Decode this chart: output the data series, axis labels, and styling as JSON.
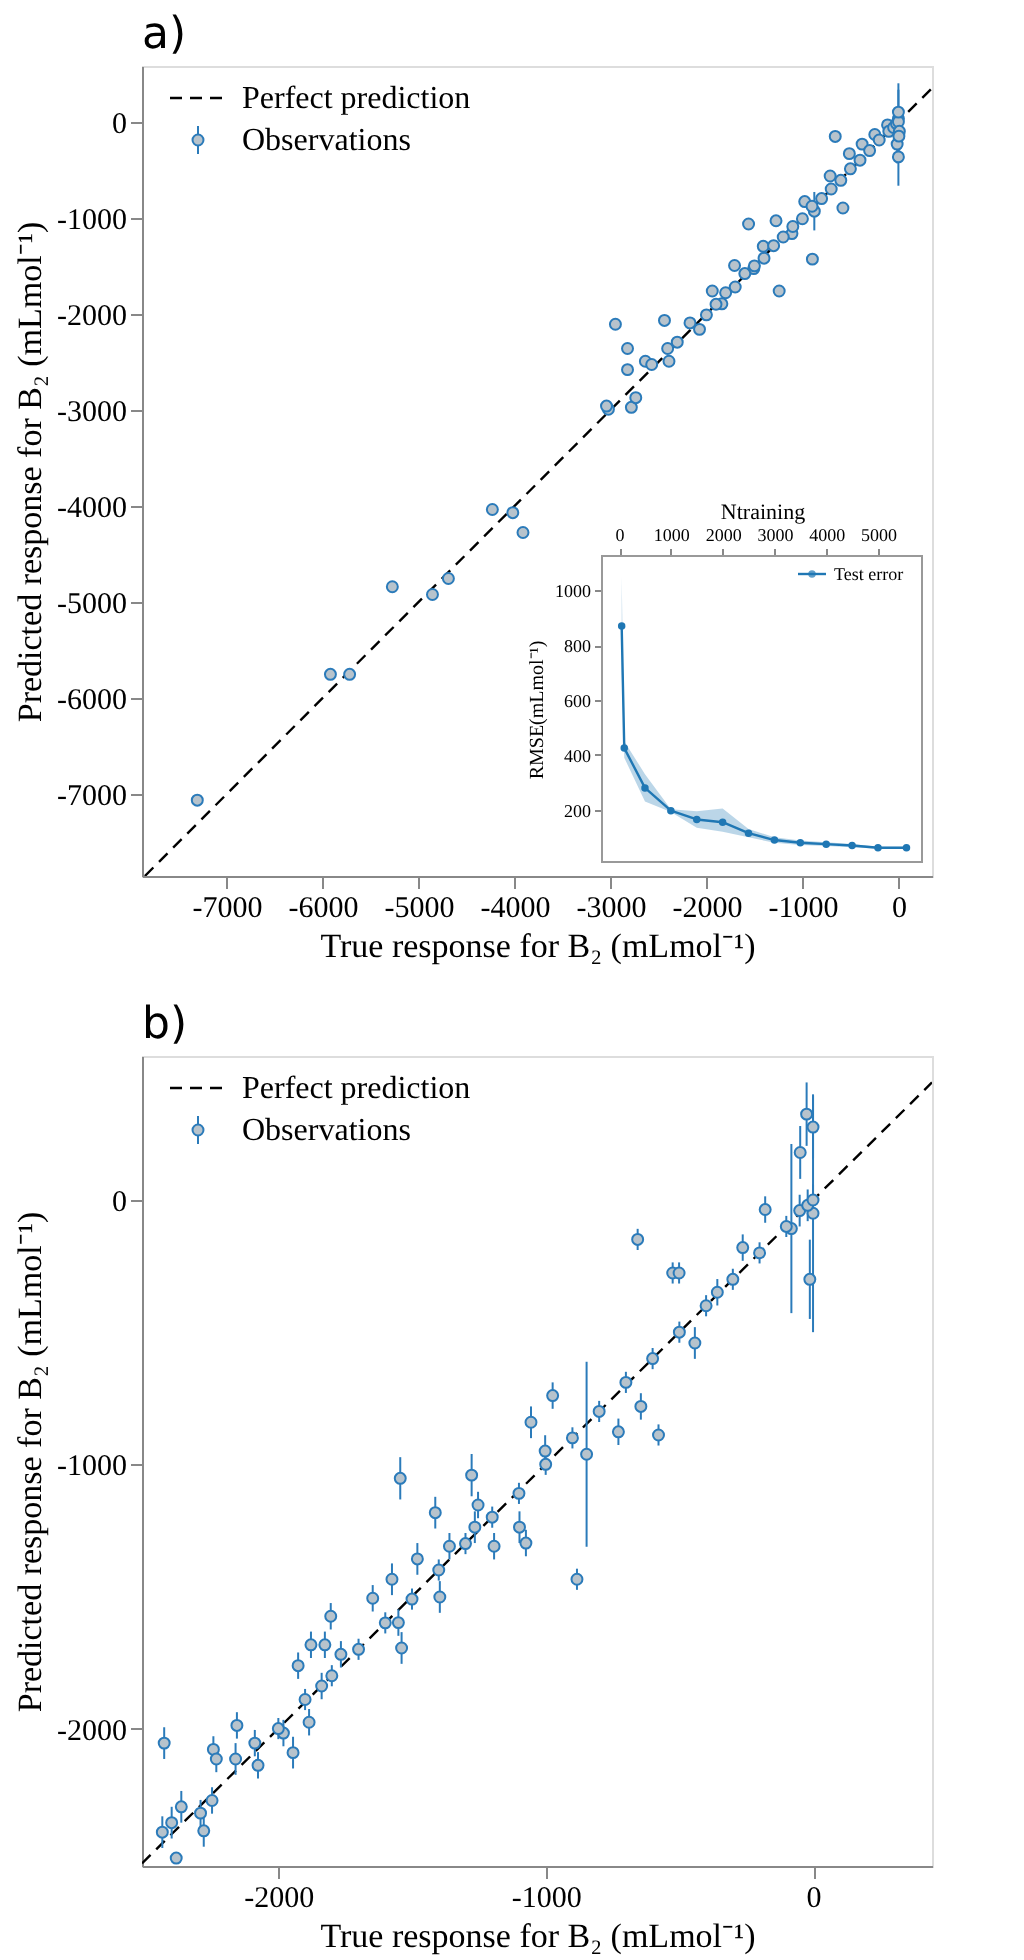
{
  "chart_data": [
    {
      "type": "scatter",
      "annotations": [
        "a)"
      ],
      "xlabel": "True response for B₂ (mLmol⁻¹)",
      "ylabel": "Predicted response for B₂ (mLmol⁻¹)",
      "xlim": [
        -7880,
        350
      ],
      "ylim": [
        -7850,
        580
      ],
      "xticks": [
        -7000,
        -6000,
        -5000,
        -4000,
        -3000,
        -2000,
        -1000,
        0
      ],
      "yticks": [
        -7000,
        -6000,
        -5000,
        -4000,
        -3000,
        -2000,
        -1000,
        0
      ],
      "legend": "top left",
      "grid": false,
      "series": [
        {
          "name": "Perfect prediction",
          "type": "line",
          "color": "#000000",
          "line_style": "dashed",
          "x": [
            -7850,
            350
          ],
          "values": [
            -7850,
            350
          ]
        },
        {
          "name": "Observations",
          "type": "scatter",
          "color": "#2b7bba",
          "marker": "circle",
          "x": [
            -7304,
            -5917,
            -5717,
            -5272,
            -4854,
            -4688,
            -4230,
            -4017,
            -3911,
            -3021,
            -3041,
            -2948,
            -2822,
            -2822,
            -2782,
            -2736,
            -2636,
            -2570,
            -2437,
            -2390,
            -2404,
            -2304,
            -2171,
            -2072,
            -1939,
            -1839,
            -1707,
            -1561,
            -1507,
            -1408,
            -1275,
            -1242,
            -1109,
            -976,
            -896,
            -876,
            -711,
            -658,
            -578,
            -511,
            -378,
            -246,
            -113,
            0,
            0,
            -13,
            -2000,
            -1900,
            -1800,
            -1700,
            -1600,
            -1500,
            -1400,
            -1300,
            -1200,
            -1100,
            -1000,
            -900,
            -800,
            -700,
            -600,
            -500,
            -400,
            -300,
            -200,
            -100,
            -50,
            -20,
            0,
            10,
            5,
            0
          ],
          "values": [
            -7061,
            -5751,
            -5751,
            -4840,
            -4920,
            -4754,
            -4036,
            -4069,
            -4275,
            -2992,
            -2959,
            -2108,
            -2360,
            -2580,
            -2972,
            -2872,
            -2493,
            -2527,
            -2068,
            -2493,
            -2360,
            -2294,
            -2094,
            -2161,
            -1762,
            -1895,
            -1496,
            -1064,
            -1529,
            -1297,
            -1031,
            -1762,
            -1164,
            -831,
            -1430,
            -931,
            -565,
            -153,
            -898,
            -332,
            -233,
            -133,
            -33,
            33,
            -366,
            -233,
            -2010,
            -1900,
            -1780,
            -1720,
            -1580,
            -1500,
            -1420,
            -1290,
            -1200,
            -1090,
            -1010,
            -880,
            -800,
            -700,
            -610,
            -490,
            -400,
            -300,
            -190,
            -100,
            -60,
            -20,
            0,
            -100,
            -150,
            100
          ],
          "errors": [
            60,
            40,
            40,
            40,
            40,
            40,
            30,
            30,
            30,
            60,
            40,
            60,
            40,
            60,
            40,
            40,
            40,
            40,
            50,
            60,
            60,
            40,
            40,
            40,
            60,
            40,
            40,
            60,
            40,
            40,
            60,
            40,
            40,
            40,
            40,
            200,
            40,
            40,
            40,
            40,
            40,
            40,
            40,
            300,
            300,
            200,
            30,
            30,
            30,
            30,
            30,
            30,
            30,
            30,
            30,
            30,
            30,
            30,
            30,
            30,
            30,
            30,
            30,
            30,
            30,
            30,
            30,
            30,
            100,
            200,
            150,
            300
          ]
        }
      ]
    },
    {
      "type": "line",
      "xlabel": "Ntraining",
      "ylabel": "RMSE(mLmol⁻¹)",
      "xlim": [
        -330,
        5850
      ],
      "ylim": [
        10,
        1125
      ],
      "xticks": [
        0,
        1000,
        2000,
        3000,
        4000,
        5000
      ],
      "yticks": [
        200,
        400,
        600,
        800,
        1000
      ],
      "legend": "top right",
      "grid": false,
      "marker": "circle",
      "series": [
        {
          "name": "Test error",
          "color": "#1f77b4",
          "x": [
            50,
            100,
            500,
            1000,
            1500,
            2000,
            2500,
            3000,
            3500,
            4000,
            4500,
            5000,
            5550
          ],
          "values": [
            870,
            425,
            280,
            197,
            165,
            155,
            115,
            90,
            80,
            75,
            70,
            62,
            62
          ],
          "lower": [
            700,
            390,
            230,
            192,
            135,
            120,
            100,
            80,
            72,
            68,
            64,
            58,
            58
          ],
          "upper": [
            1050,
            450,
            330,
            202,
            195,
            205,
            130,
            100,
            88,
            82,
            76,
            66,
            66
          ]
        }
      ]
    },
    {
      "type": "scatter",
      "annotations": [
        "b)"
      ],
      "xlabel": "True response for B₂ (mLmol⁻¹)",
      "ylabel": "Predicted response for B₂ (mLmol⁻¹)",
      "xlim": [
        -2510,
        445
      ],
      "ylim": [
        -2520,
        545
      ],
      "xticks": [
        -2000,
        -1000,
        0
      ],
      "yticks": [
        -2000,
        -1000,
        0
      ],
      "legend": "top left",
      "grid": false,
      "series": [
        {
          "name": "Perfect prediction",
          "type": "line",
          "color": "#000000",
          "line_style": "dashed",
          "x": [
            -2510,
            445
          ],
          "values": [
            -2510,
            445
          ]
        },
        {
          "name": "Observations",
          "type": "scatter",
          "color": "#2b7bba",
          "marker": "circle",
          "x": [
            -2427,
            -2434,
            -2399,
            -2382,
            -2363,
            -2279,
            -2291,
            -2243,
            -2232,
            -2248,
            -2155,
            -2160,
            -2088,
            -2076,
            -1981,
            -1945,
            -1926,
            -1885,
            -1878,
            -1838,
            -1804,
            -1826,
            -1766,
            -1647,
            -1575,
            -1544,
            -1539,
            -1551,
            -1480,
            -1413,
            -1396,
            -1360,
            -1277,
            -1265,
            -1253,
            -1193,
            -1098,
            -1074,
            -1055,
            -974,
            -1002,
            -883,
            -847,
            -728,
            -656,
            -644,
            -578,
            -525,
            -501,
            -442,
            -358,
            -263,
            -179,
            -81,
            -12,
            0,
            -24,
            -48,
            0,
            -2000,
            -1900,
            -1800,
            -1700,
            -1600,
            -1500,
            -1400,
            -1300,
            -1200,
            -1100,
            -1000,
            -900,
            -800,
            -700,
            -600,
            -500,
            -400,
            -300,
            -200,
            -100,
            -50,
            -20,
            0
          ],
          "values": [
            -2055,
            -2392,
            -2356,
            -2490,
            -2296,
            -2387,
            -2320,
            -2079,
            -2115,
            -2272,
            -1988,
            -2115,
            -2055,
            -2139,
            -2017,
            -2091,
            -1762,
            -1976,
            -1683,
            -1839,
            -1575,
            -1683,
            -1719,
            -1507,
            -1435,
            -1053,
            -1695,
            -1599,
            -1358,
            -1183,
            -1502,
            -1310,
            -1041,
            -1238,
            -1154,
            -1310,
            -1238,
            -1298,
            -841,
            -740,
            -950,
            -1435,
            -962,
            -877,
            -149,
            -781,
            -889,
            -276,
            -276,
            -541,
            -349,
            -180,
            -36,
            -108,
            -300,
            276,
            325,
            180,
            -50,
            -2000,
            -1890,
            -1800,
            -1700,
            -1600,
            -1510,
            -1400,
            -1300,
            -1200,
            -1110,
            -1000,
            -900,
            -800,
            -690,
            -600,
            -500,
            -400,
            -300,
            -200,
            -100,
            -40,
            -20,
            0
          ],
          "errors": [
            60,
            60,
            60,
            null,
            60,
            60,
            50,
            50,
            50,
            50,
            50,
            60,
            50,
            50,
            50,
            60,
            50,
            50,
            50,
            50,
            50,
            50,
            50,
            50,
            60,
            80,
            60,
            50,
            60,
            60,
            60,
            50,
            80,
            60,
            50,
            50,
            60,
            50,
            60,
            50,
            60,
            40,
            350,
            50,
            40,
            50,
            40,
            40,
            40,
            60,
            50,
            50,
            50,
            320,
            150,
            120,
            120,
            100,
            450,
            40,
            40,
            40,
            40,
            40,
            40,
            40,
            40,
            40,
            40,
            40,
            40,
            40,
            40,
            40,
            40,
            40,
            40,
            40,
            40,
            60,
            60,
            60
          ]
        }
      ]
    }
  ]
}
